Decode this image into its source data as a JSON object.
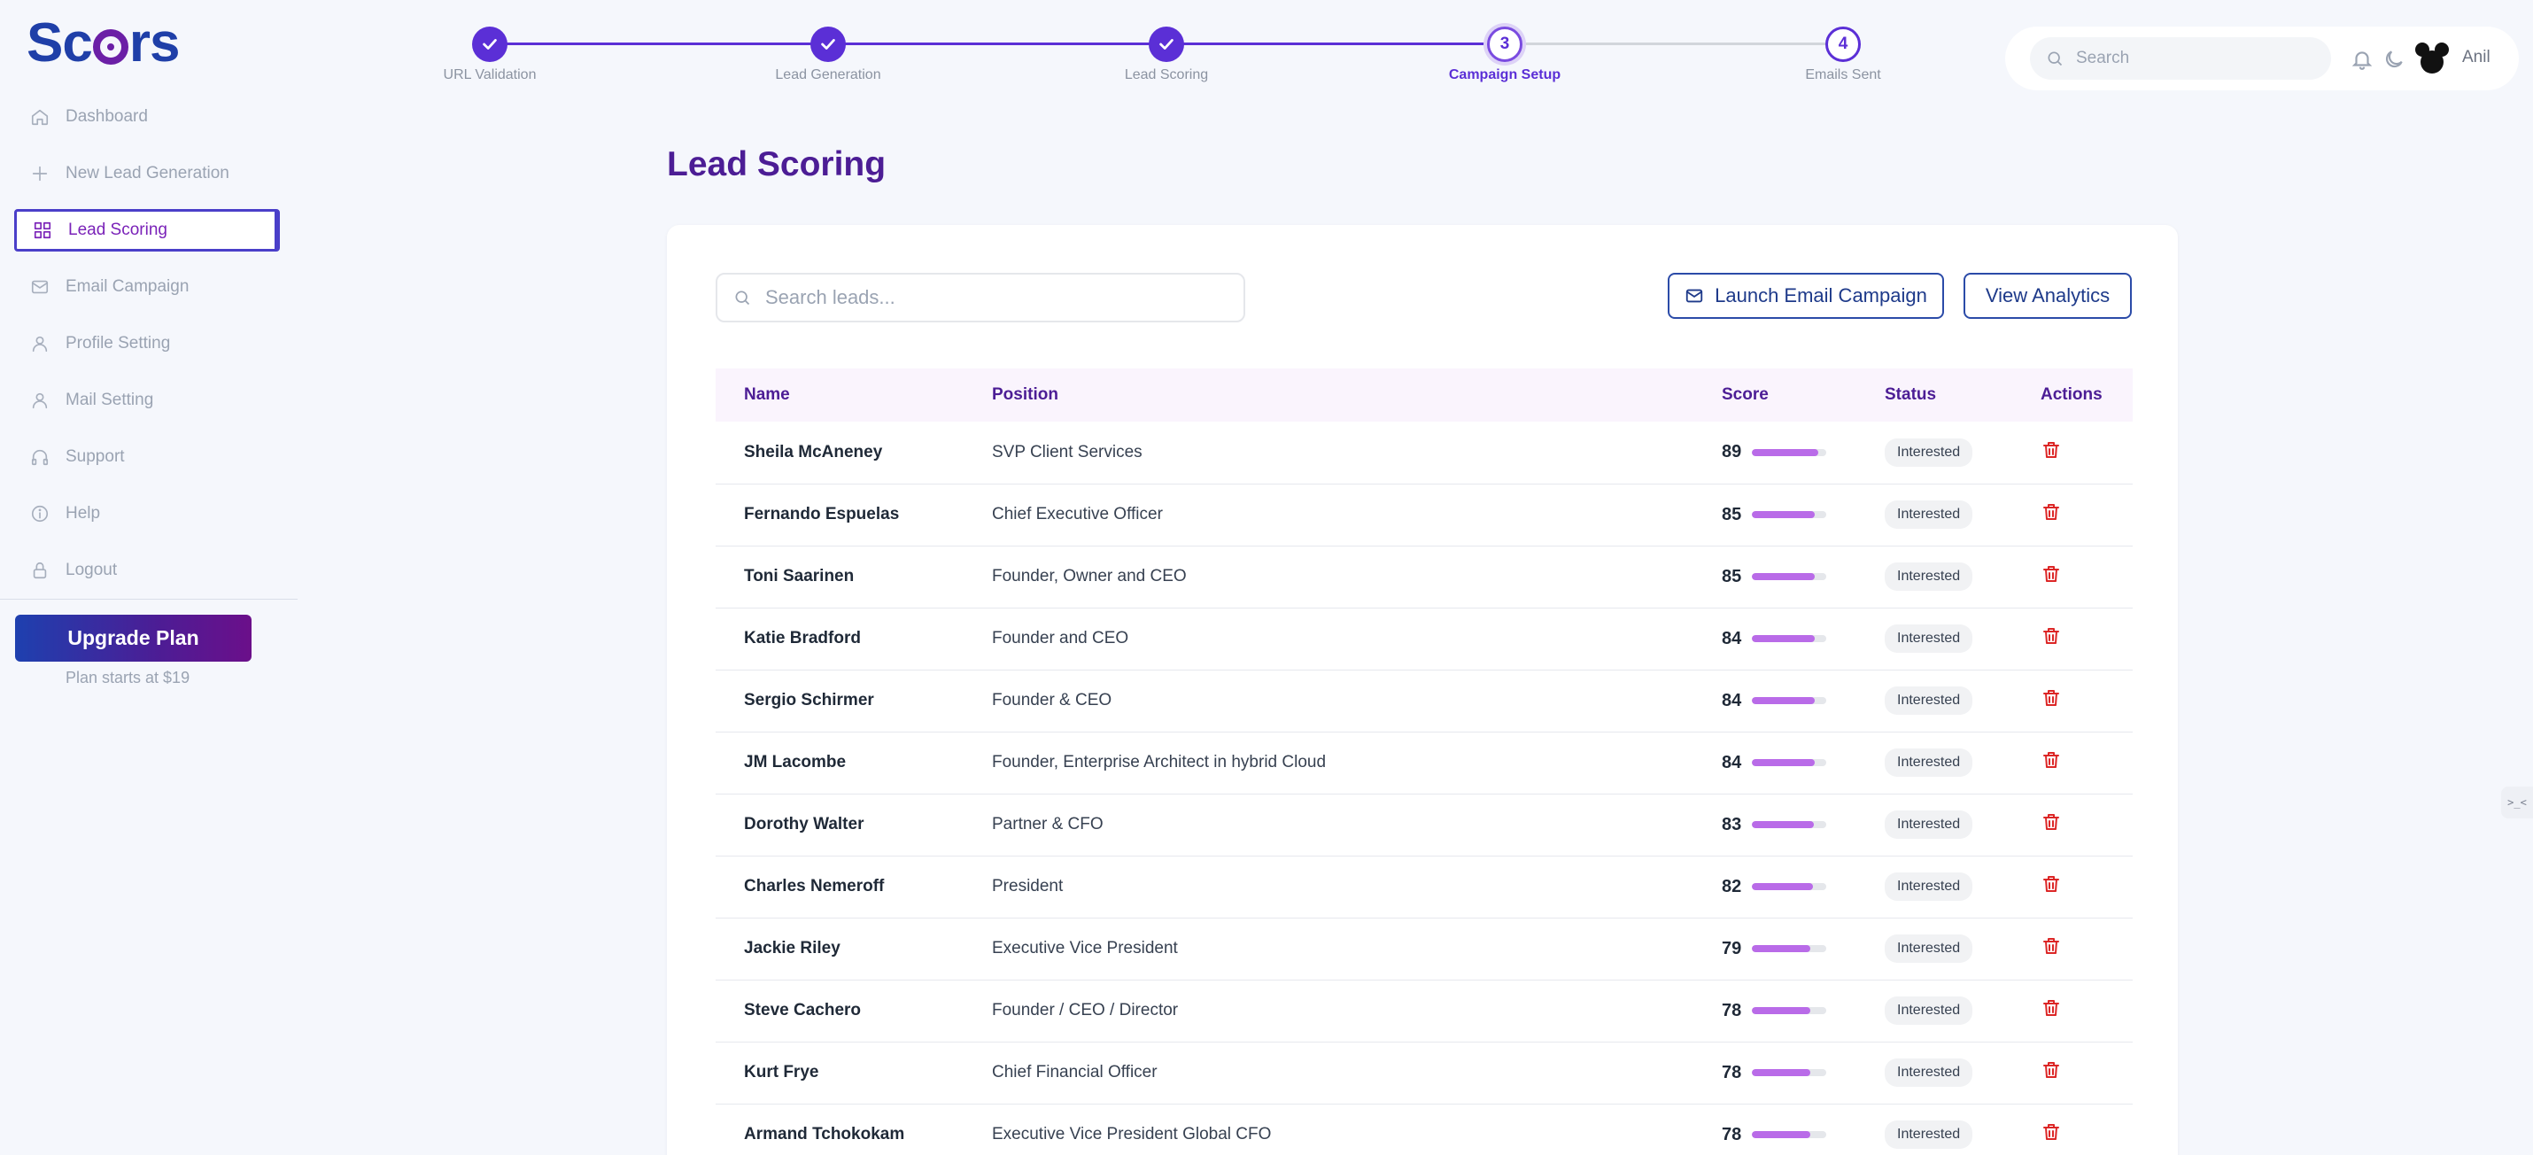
{
  "app": {
    "logo_text": "Scors"
  },
  "sidebar": {
    "items": [
      {
        "label": "Dashboard",
        "icon": "home-icon",
        "active": false
      },
      {
        "label": "New Lead Generation",
        "icon": "plus-icon",
        "active": false
      },
      {
        "label": "Lead Scoring",
        "icon": "grid-icon",
        "active": true
      },
      {
        "label": "Email Campaign",
        "icon": "mail-icon",
        "active": false
      },
      {
        "label": "Profile Setting",
        "icon": "user-icon",
        "active": false
      },
      {
        "label": "Mail Setting",
        "icon": "user-icon",
        "active": false
      },
      {
        "label": "Support",
        "icon": "headphones-icon",
        "active": false
      },
      {
        "label": "Help",
        "icon": "info-icon",
        "active": false
      },
      {
        "label": "Logout",
        "icon": "lock-icon",
        "active": false
      }
    ],
    "upgrade_label": "Upgrade Plan",
    "plan_note": "Plan starts at $19"
  },
  "stepper": {
    "steps": [
      {
        "label": "URL Validation",
        "state": "done",
        "marker": ""
      },
      {
        "label": "Lead Generation",
        "state": "done",
        "marker": ""
      },
      {
        "label": "Lead Scoring",
        "state": "done",
        "marker": ""
      },
      {
        "label": "Campaign Setup",
        "state": "current",
        "marker": "3"
      },
      {
        "label": "Emails Sent",
        "state": "todo",
        "marker": "4"
      }
    ]
  },
  "topbar": {
    "search_placeholder": "Search",
    "user_name": "Anil"
  },
  "main": {
    "title": "Lead Scoring",
    "search_placeholder": "Search leads...",
    "launch_label": "Launch Email Campaign",
    "analytics_label": "View Analytics",
    "columns": [
      "Name",
      "Position",
      "Score",
      "Status",
      "Actions"
    ],
    "rows": [
      {
        "name": "Sheila McAneney",
        "position": "SVP Client Services",
        "score": 89,
        "status": "Interested"
      },
      {
        "name": "Fernando Espuelas",
        "position": "Chief Executive Officer",
        "score": 85,
        "status": "Interested"
      },
      {
        "name": "Toni Saarinen",
        "position": "Founder, Owner and CEO",
        "score": 85,
        "status": "Interested"
      },
      {
        "name": "Katie Bradford",
        "position": "Founder and CEO",
        "score": 84,
        "status": "Interested"
      },
      {
        "name": "Sergio Schirmer",
        "position": "Founder & CEO",
        "score": 84,
        "status": "Interested"
      },
      {
        "name": "JM Lacombe",
        "position": "Founder, Enterprise Architect in hybrid Cloud",
        "score": 84,
        "status": "Interested"
      },
      {
        "name": "Dorothy Walter",
        "position": "Partner & CFO",
        "score": 83,
        "status": "Interested"
      },
      {
        "name": "Charles Nemeroff",
        "position": "President",
        "score": 82,
        "status": "Interested"
      },
      {
        "name": "Jackie Riley",
        "position": "Executive Vice President",
        "score": 79,
        "status": "Interested"
      },
      {
        "name": "Steve Cachero",
        "position": "Founder / CEO / Director",
        "score": 78,
        "status": "Interested"
      },
      {
        "name": "Kurt Frye",
        "position": "Chief Financial Officer",
        "score": 78,
        "status": "Interested"
      },
      {
        "name": "Armand Tchokokam",
        "position": "Executive Vice President Global CFO",
        "score": 78,
        "status": "Interested"
      }
    ]
  },
  "colors": {
    "accent": "#5b2fd6",
    "title": "#4c1d95",
    "score_bar": "#b96be8",
    "delete": "#dc2626"
  },
  "edge_tab_label": ">_<"
}
